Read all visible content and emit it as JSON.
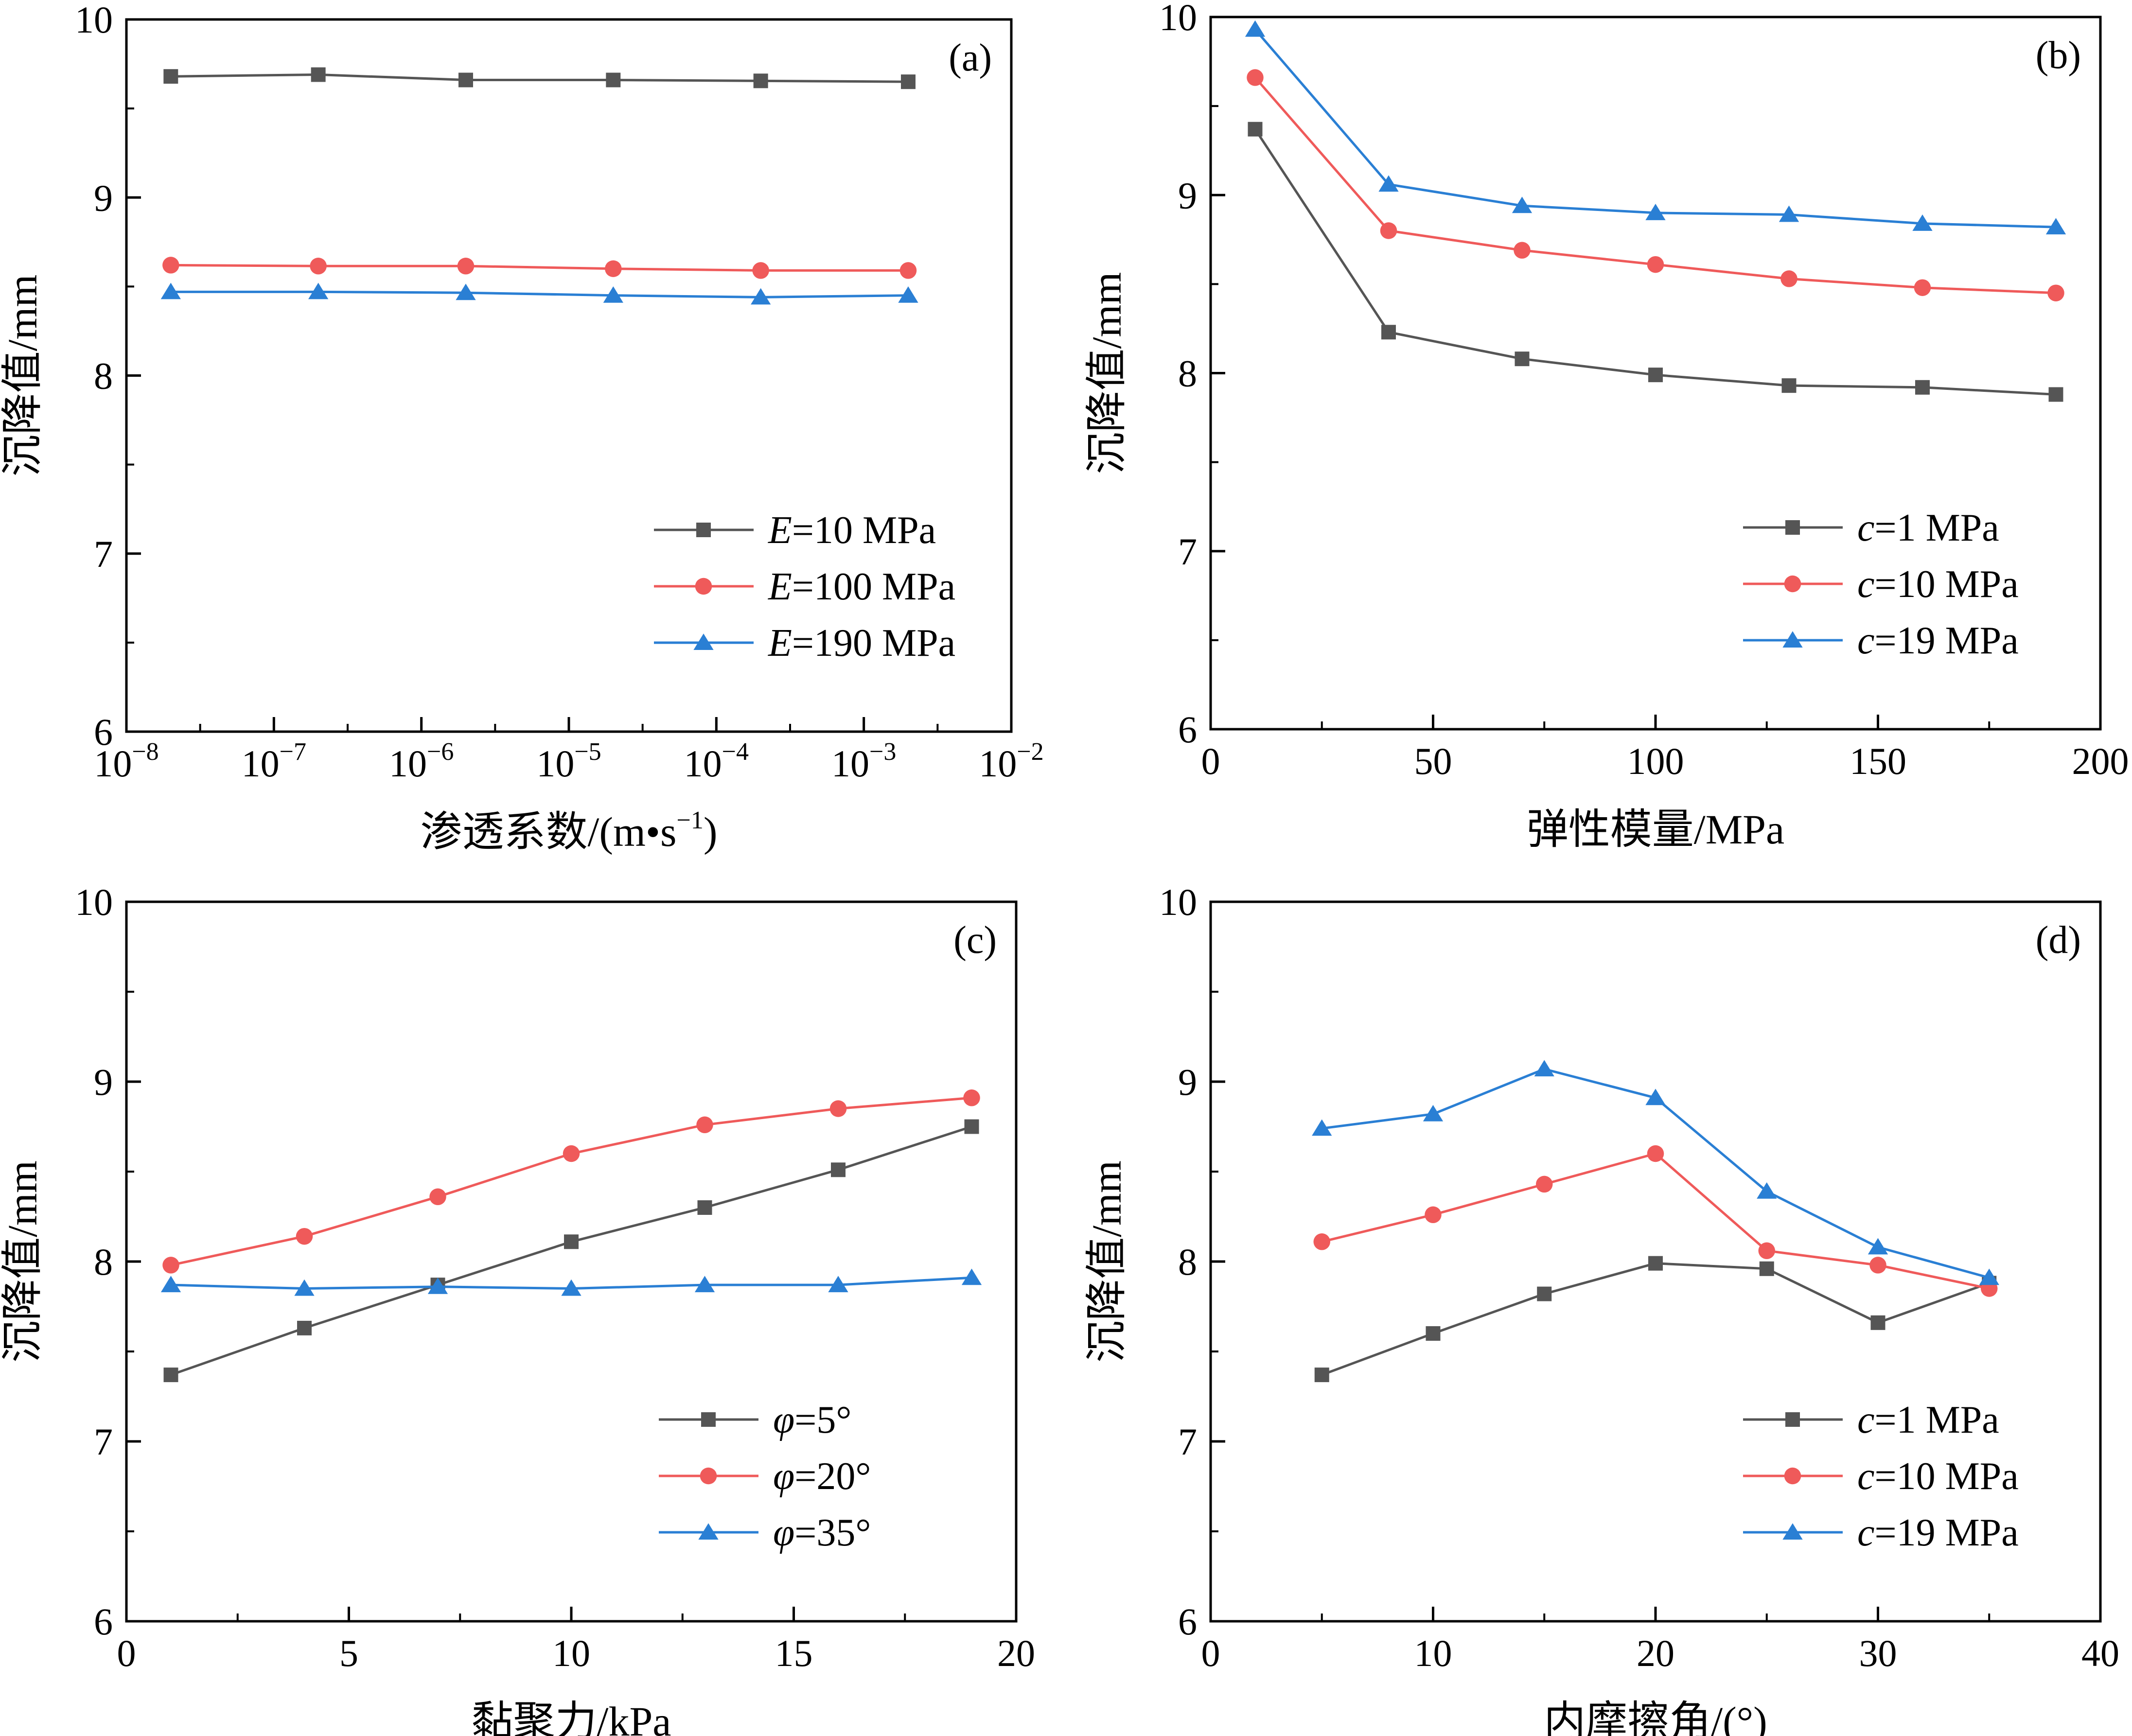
{
  "chart_data": [
    {
      "type": "line",
      "panel_label": "(a)",
      "xscale": "log",
      "x": [
        2e-08,
        2e-07,
        2e-06,
        2e-05,
        0.0002,
        0.002
      ],
      "xlim": [
        1e-08,
        0.01
      ],
      "ylim": [
        6,
        10
      ],
      "xticks": [
        {
          "base": "10",
          "exp": "−8"
        },
        {
          "base": "10",
          "exp": "−7"
        },
        {
          "base": "10",
          "exp": "−6"
        },
        {
          "base": "10",
          "exp": "−5"
        },
        {
          "base": "10",
          "exp": "−4"
        },
        {
          "base": "10",
          "exp": "−3"
        },
        {
          "base": "10",
          "exp": "−2"
        }
      ],
      "yticks": [
        "6",
        "7",
        "8",
        "9",
        "10"
      ],
      "xlabel": {
        "text": "渗透系数/(m•s",
        "sup": "−1",
        "close": ")"
      },
      "ylabel": "沉降值/mm",
      "legend_position": "bottom-right",
      "series": [
        {
          "name_italic": "E",
          "name_rest": "=10 MPa",
          "color": "#555555",
          "marker": "square",
          "values": [
            9.68,
            9.69,
            9.66,
            9.66,
            9.655,
            9.65
          ]
        },
        {
          "name_italic": "E",
          "name_rest": "=100 MPa",
          "color": "#ef5a5a",
          "marker": "circle",
          "values": [
            8.62,
            8.615,
            8.615,
            8.6,
            8.59,
            8.59
          ]
        },
        {
          "name_italic": "E",
          "name_rest": "=190 MPa",
          "color": "#2a7fd4",
          "marker": "triangle",
          "values": [
            8.47,
            8.47,
            8.465,
            8.45,
            8.44,
            8.45
          ]
        }
      ]
    },
    {
      "type": "line",
      "panel_label": "(b)",
      "xscale": "linear",
      "x": [
        10,
        40,
        70,
        100,
        130,
        160,
        190
      ],
      "xlim": [
        0,
        200
      ],
      "ylim": [
        6,
        10
      ],
      "xticks": [
        "0",
        "50",
        "100",
        "150",
        "200"
      ],
      "yticks": [
        "6",
        "7",
        "8",
        "9",
        "10"
      ],
      "xlabel": {
        "text": "弹性模量/MPa"
      },
      "ylabel": "沉降值/mm",
      "legend_position": "bottom-right",
      "series": [
        {
          "name_italic": "c",
          "name_rest": "=1 MPa",
          "color": "#555555",
          "marker": "square",
          "values": [
            9.37,
            8.23,
            8.08,
            7.99,
            7.93,
            7.92,
            7.88
          ]
        },
        {
          "name_italic": "c",
          "name_rest": "=10 MPa",
          "color": "#ef5a5a",
          "marker": "circle",
          "values": [
            9.66,
            8.8,
            8.69,
            8.61,
            8.53,
            8.48,
            8.45
          ]
        },
        {
          "name_italic": "c",
          "name_rest": "=19 MPa",
          "color": "#2a7fd4",
          "marker": "triangle",
          "values": [
            9.93,
            9.06,
            8.94,
            8.9,
            8.89,
            8.84,
            8.82
          ]
        }
      ]
    },
    {
      "type": "line",
      "panel_label": "(c)",
      "xscale": "linear",
      "x": [
        1,
        4,
        7,
        10,
        13,
        16,
        19
      ],
      "xlim": [
        0,
        20
      ],
      "ylim": [
        6,
        10
      ],
      "xticks": [
        "0",
        "5",
        "10",
        "15",
        "20"
      ],
      "yticks": [
        "6",
        "7",
        "8",
        "9",
        "10"
      ],
      "xlabel": {
        "text": "黏聚力/kPa"
      },
      "ylabel": "沉降值/mm",
      "legend_position": "bottom-right",
      "series": [
        {
          "name_italic": "φ",
          "name_rest": "=5°",
          "color": "#555555",
          "marker": "square",
          "values": [
            7.37,
            7.63,
            7.87,
            8.11,
            8.3,
            8.51,
            8.75
          ]
        },
        {
          "name_italic": "φ",
          "name_rest": "=20°",
          "color": "#ef5a5a",
          "marker": "circle",
          "values": [
            7.98,
            8.14,
            8.36,
            8.6,
            8.76,
            8.85,
            8.91
          ]
        },
        {
          "name_italic": "φ",
          "name_rest": "=35°",
          "color": "#2a7fd4",
          "marker": "triangle",
          "values": [
            7.87,
            7.85,
            7.86,
            7.85,
            7.87,
            7.87,
            7.91
          ]
        }
      ]
    },
    {
      "type": "line",
      "panel_label": "(d)",
      "xscale": "linear",
      "x": [
        5,
        10,
        15,
        20,
        25,
        30,
        35
      ],
      "xlim": [
        0,
        40
      ],
      "ylim": [
        6,
        10
      ],
      "xticks": [
        "0",
        "10",
        "20",
        "30",
        "40"
      ],
      "yticks": [
        "6",
        "7",
        "8",
        "9",
        "10"
      ],
      "xlabel": {
        "text": "内摩擦角/(°)"
      },
      "ylabel": "沉降值/mm",
      "legend_position": "bottom-right",
      "series": [
        {
          "name_italic": "c",
          "name_rest": "=1 MPa",
          "color": "#555555",
          "marker": "square",
          "values": [
            7.37,
            7.6,
            7.82,
            7.99,
            7.96,
            7.66,
            7.88
          ]
        },
        {
          "name_italic": "c",
          "name_rest": "=10 MPa",
          "color": "#ef5a5a",
          "marker": "circle",
          "values": [
            8.11,
            8.26,
            8.43,
            8.6,
            8.06,
            7.98,
            7.85
          ]
        },
        {
          "name_italic": "c",
          "name_rest": "=19 MPa",
          "color": "#2a7fd4",
          "marker": "triangle",
          "values": [
            8.74,
            8.82,
            9.07,
            8.91,
            8.39,
            8.08,
            7.91
          ]
        }
      ]
    }
  ]
}
